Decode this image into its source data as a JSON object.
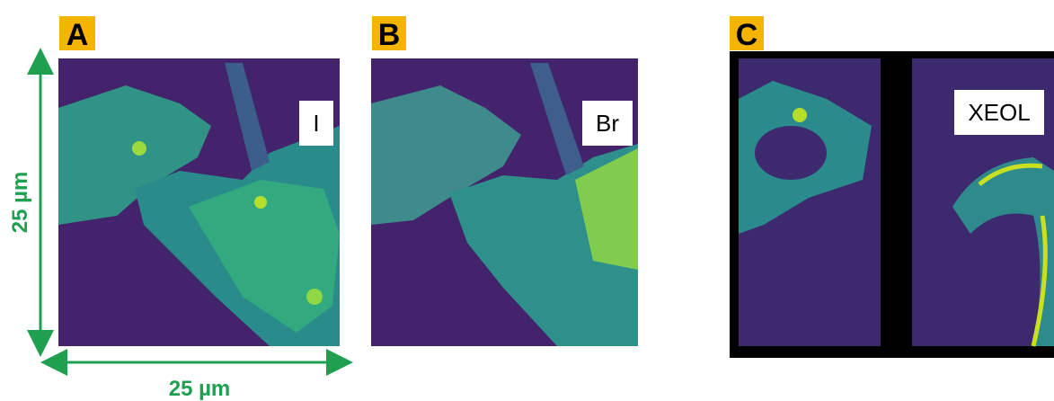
{
  "panels": [
    {
      "label": "A",
      "tag": "I"
    },
    {
      "label": "B",
      "tag": "Br"
    },
    {
      "label": "C",
      "tag": "XEOL"
    }
  ],
  "scale": {
    "vertical": "25 µm",
    "horizontal": "25 µm"
  }
}
